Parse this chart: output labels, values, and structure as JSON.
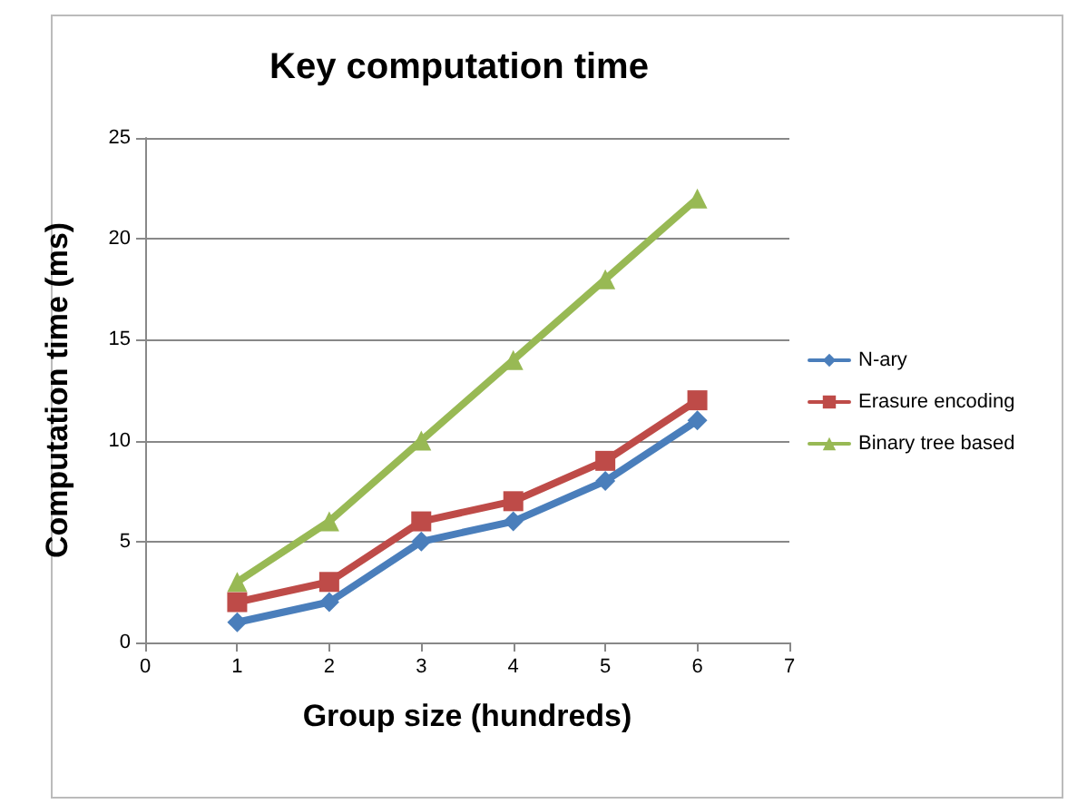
{
  "chart_data": {
    "type": "line",
    "title": "Key computation time",
    "xlabel": "Group size (hundreds)",
    "ylabel": "Computation time (ms)",
    "x": [
      1,
      2,
      3,
      4,
      5,
      6
    ],
    "series": [
      {
        "name": "N-ary",
        "color": "#4a7ebb",
        "marker": "diamond",
        "values": [
          1,
          2,
          5,
          6,
          8,
          11
        ]
      },
      {
        "name": "Erasure encoding",
        "color": "#be4b48",
        "marker": "square",
        "values": [
          2,
          3,
          6,
          7,
          9,
          12
        ]
      },
      {
        "name": "Binary tree based",
        "color": "#98b954",
        "marker": "triangle",
        "values": [
          3,
          6,
          10,
          14,
          18,
          22
        ]
      }
    ],
    "xlim": [
      0,
      7
    ],
    "xticks": [
      0,
      1,
      2,
      3,
      4,
      5,
      6,
      7
    ],
    "ylim": [
      0,
      25
    ],
    "yticks": [
      0,
      5,
      10,
      15,
      20,
      25
    ],
    "grid": "y",
    "legend": "right",
    "line_style": "solid"
  }
}
